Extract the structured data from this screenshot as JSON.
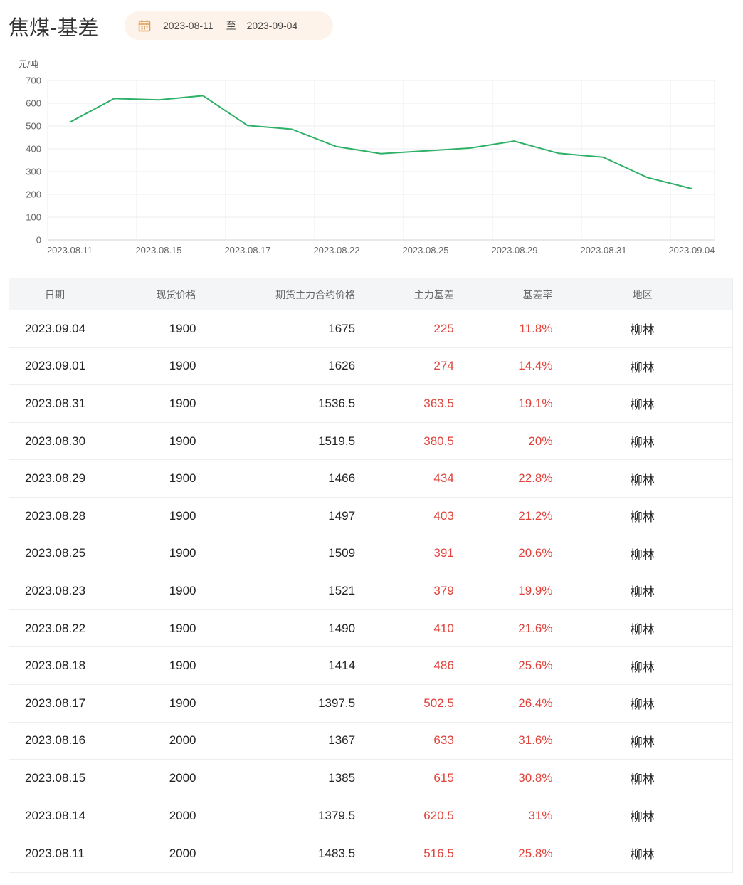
{
  "page": {
    "title": "焦煤-基差"
  },
  "date_filter": {
    "start": "2023-08-11",
    "separator": "至",
    "end": "2023-09-04",
    "icon": "calendar-icon"
  },
  "colors": {
    "line": "#2eb067",
    "accent_red": "#e0443c",
    "date_pill_bg": "#fdf3ea",
    "calendar_icon": "#e09a4e"
  },
  "chart_data": {
    "type": "line",
    "ylabel": "元/吨",
    "ylim": [
      0,
      700
    ],
    "yticks": [
      0,
      100,
      200,
      300,
      400,
      500,
      600,
      700
    ],
    "grid": true,
    "x": [
      "2023.08.11",
      "2023.08.14",
      "2023.08.15",
      "2023.08.16",
      "2023.08.17",
      "2023.08.18",
      "2023.08.22",
      "2023.08.23",
      "2023.08.25",
      "2023.08.28",
      "2023.08.29",
      "2023.08.30",
      "2023.08.31",
      "2023.09.01",
      "2023.09.04"
    ],
    "xtick_labels": [
      "2023.08.11",
      "2023.08.15",
      "2023.08.17",
      "2023.08.22",
      "2023.08.25",
      "2023.08.29",
      "2023.08.31",
      "2023.09.04"
    ],
    "series": [
      {
        "values": [
          516.5,
          620.5,
          615,
          633,
          502.5,
          486,
          410,
          379,
          391,
          403,
          434,
          380.5,
          363.5,
          274,
          225
        ]
      }
    ]
  },
  "table": {
    "headers": {
      "date": "日期",
      "spot": "现货价格",
      "futures": "期货主力合约价格",
      "basis": "主力基差",
      "rate": "基差率",
      "region": "地区"
    },
    "rows": [
      {
        "date": "2023.09.04",
        "spot": "1900",
        "futures": "1675",
        "basis": "225",
        "rate": "11.8%",
        "region": "柳林"
      },
      {
        "date": "2023.09.01",
        "spot": "1900",
        "futures": "1626",
        "basis": "274",
        "rate": "14.4%",
        "region": "柳林"
      },
      {
        "date": "2023.08.31",
        "spot": "1900",
        "futures": "1536.5",
        "basis": "363.5",
        "rate": "19.1%",
        "region": "柳林"
      },
      {
        "date": "2023.08.30",
        "spot": "1900",
        "futures": "1519.5",
        "basis": "380.5",
        "rate": "20%",
        "region": "柳林"
      },
      {
        "date": "2023.08.29",
        "spot": "1900",
        "futures": "1466",
        "basis": "434",
        "rate": "22.8%",
        "region": "柳林"
      },
      {
        "date": "2023.08.28",
        "spot": "1900",
        "futures": "1497",
        "basis": "403",
        "rate": "21.2%",
        "region": "柳林"
      },
      {
        "date": "2023.08.25",
        "spot": "1900",
        "futures": "1509",
        "basis": "391",
        "rate": "20.6%",
        "region": "柳林"
      },
      {
        "date": "2023.08.23",
        "spot": "1900",
        "futures": "1521",
        "basis": "379",
        "rate": "19.9%",
        "region": "柳林"
      },
      {
        "date": "2023.08.22",
        "spot": "1900",
        "futures": "1490",
        "basis": "410",
        "rate": "21.6%",
        "region": "柳林"
      },
      {
        "date": "2023.08.18",
        "spot": "1900",
        "futures": "1414",
        "basis": "486",
        "rate": "25.6%",
        "region": "柳林"
      },
      {
        "date": "2023.08.17",
        "spot": "1900",
        "futures": "1397.5",
        "basis": "502.5",
        "rate": "26.4%",
        "region": "柳林"
      },
      {
        "date": "2023.08.16",
        "spot": "2000",
        "futures": "1367",
        "basis": "633",
        "rate": "31.6%",
        "region": "柳林"
      },
      {
        "date": "2023.08.15",
        "spot": "2000",
        "futures": "1385",
        "basis": "615",
        "rate": "30.8%",
        "region": "柳林"
      },
      {
        "date": "2023.08.14",
        "spot": "2000",
        "futures": "1379.5",
        "basis": "620.5",
        "rate": "31%",
        "region": "柳林"
      },
      {
        "date": "2023.08.11",
        "spot": "2000",
        "futures": "1483.5",
        "basis": "516.5",
        "rate": "25.8%",
        "region": "柳林"
      }
    ]
  }
}
